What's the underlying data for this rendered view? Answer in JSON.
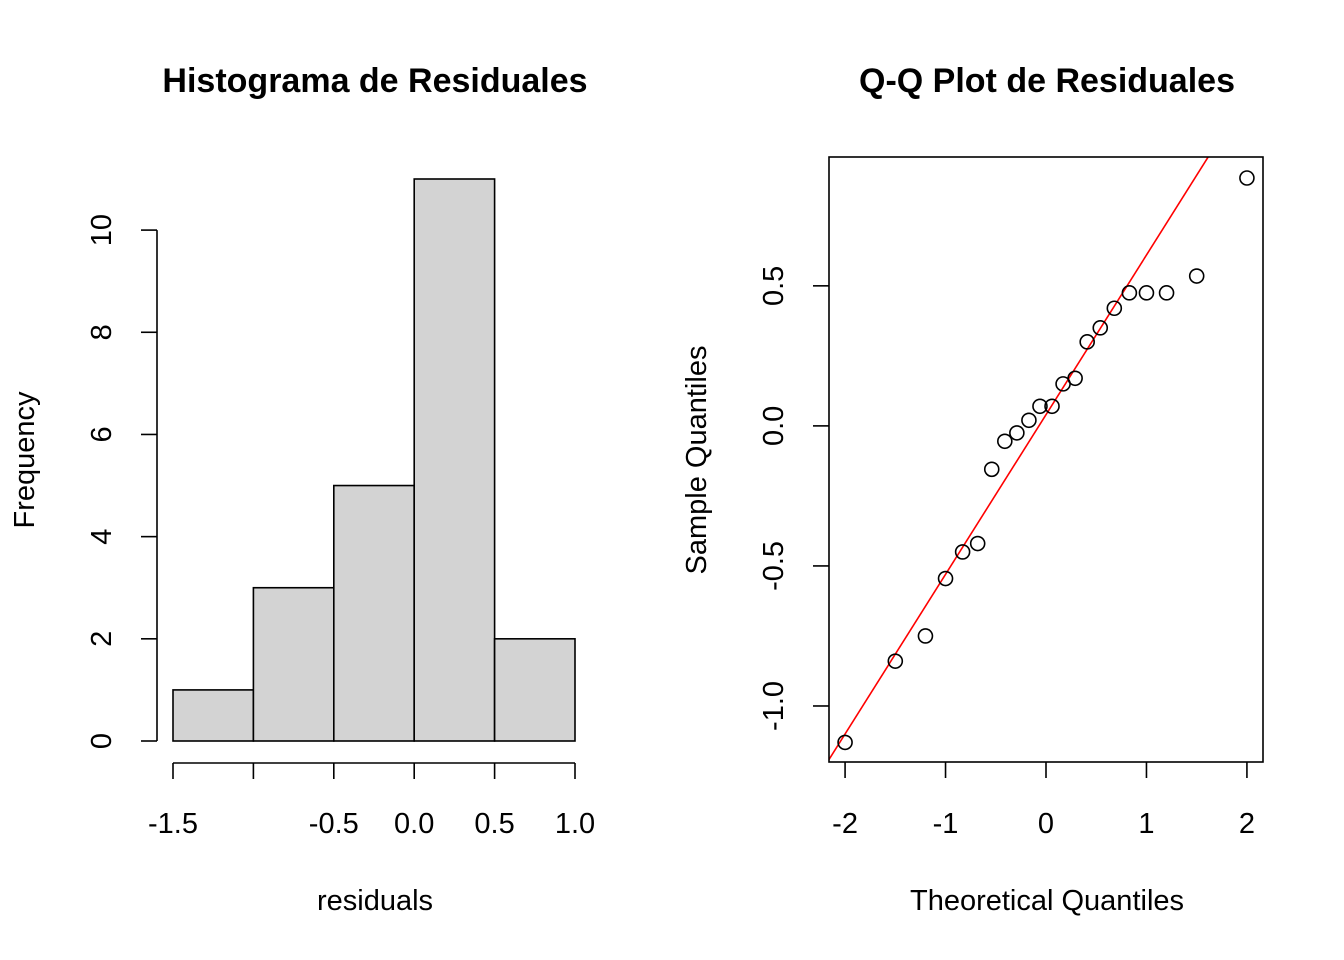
{
  "chart_data": [
    {
      "type": "bar",
      "title": "Histograma de Residuales",
      "xlabel": "residuals",
      "ylabel": "Frequency",
      "bins": [
        [
          -1.5,
          -1.0
        ],
        [
          -1.0,
          -0.5
        ],
        [
          -0.5,
          0.0
        ],
        [
          0.0,
          0.5
        ],
        [
          0.5,
          1.0
        ]
      ],
      "values": [
        1,
        3,
        5,
        11,
        2
      ],
      "xticks": [
        -1.5,
        -1.0,
        -0.5,
        0.0,
        0.5,
        1.0
      ],
      "xtick_labels": [
        "-1.5",
        "",
        "-0.5",
        "0.0",
        "0.5",
        "1.0"
      ],
      "yticks": [
        0,
        2,
        4,
        6,
        8,
        10
      ],
      "ytick_labels": [
        "0",
        "2",
        "4",
        "6",
        "8",
        "10"
      ],
      "xlim": [
        -1.5,
        1.0
      ],
      "ylim": [
        0,
        11
      ],
      "colors": {
        "bar_fill": "#d3d3d3",
        "bar_stroke": "#000000"
      }
    },
    {
      "type": "scatter",
      "title": "Q-Q Plot de Residuales",
      "xlabel": "Theoretical Quantiles",
      "ylabel": "Sample Quantiles",
      "points": [
        {
          "x": -2.0,
          "y": -1.13
        },
        {
          "x": -1.5,
          "y": -0.84
        },
        {
          "x": -1.2,
          "y": -0.75
        },
        {
          "x": -1.0,
          "y": -0.545
        },
        {
          "x": -0.83,
          "y": -0.45
        },
        {
          "x": -0.68,
          "y": -0.42
        },
        {
          "x": -0.54,
          "y": -0.155
        },
        {
          "x": -0.41,
          "y": -0.055
        },
        {
          "x": -0.29,
          "y": -0.025
        },
        {
          "x": -0.17,
          "y": 0.02
        },
        {
          "x": -0.06,
          "y": 0.07
        },
        {
          "x": 0.06,
          "y": 0.07
        },
        {
          "x": 0.17,
          "y": 0.15
        },
        {
          "x": 0.29,
          "y": 0.17
        },
        {
          "x": 0.41,
          "y": 0.3
        },
        {
          "x": 0.54,
          "y": 0.35
        },
        {
          "x": 0.68,
          "y": 0.42
        },
        {
          "x": 0.83,
          "y": 0.475
        },
        {
          "x": 1.0,
          "y": 0.475
        },
        {
          "x": 1.2,
          "y": 0.475
        },
        {
          "x": 1.5,
          "y": 0.535
        },
        {
          "x": 2.0,
          "y": 0.885
        }
      ],
      "reference_line": {
        "intercept": 0.04,
        "slope": 0.57
      },
      "xticks": [
        -2,
        -1,
        0,
        1,
        2
      ],
      "xtick_labels": [
        "-2",
        "-1",
        "0",
        "1",
        "2"
      ],
      "yticks": [
        -1.0,
        -0.5,
        0.0,
        0.5
      ],
      "ytick_labels": [
        "-1.0",
        "-0.5",
        "0.0",
        "0.5"
      ],
      "xlim": [
        -2.16,
        2.16
      ],
      "ylim": [
        -1.2,
        0.96
      ],
      "colors": {
        "line": "#ff0000",
        "point": "#000000"
      }
    }
  ]
}
